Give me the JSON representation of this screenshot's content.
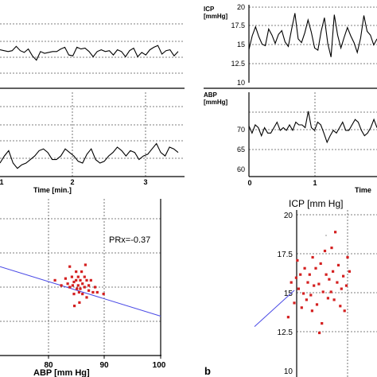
{
  "chart_data": [
    {
      "id": "a_top_trace",
      "type": "line",
      "y": [
        14.2,
        14.1,
        14.0,
        14.1,
        14.6,
        14.1,
        13.9,
        14.3,
        13.5,
        13.0,
        14.0,
        13.8,
        13.9,
        14.0,
        14.0,
        14.3,
        14.5,
        13.6,
        13.5,
        14.5,
        14.3,
        14.4,
        14.0,
        13.4,
        14.0,
        14.2,
        14.0,
        14.1,
        13.6,
        14.2,
        14.0,
        13.4,
        14.1,
        14.4,
        13.4,
        13.9,
        13.6,
        14.2,
        14.5,
        14.7,
        13.7,
        14.1,
        14.2,
        13.5,
        14.0
      ]
    },
    {
      "id": "a_bottom_trace",
      "type": "line",
      "x_ticks": [
        "1",
        "2",
        "3"
      ],
      "xlabel": "Time [min.]",
      "y": [
        80.0,
        82.0,
        83.5,
        80.0,
        78.5,
        79.5,
        80.0,
        81.0,
        82.0,
        83.5,
        84.0,
        83.0,
        81.0,
        81.0,
        82.0,
        84.0,
        83.0,
        82.0,
        80.5,
        80.0,
        82.5,
        84.0,
        81.0,
        80.0,
        80.5,
        82.0,
        83.0,
        84.5,
        83.5,
        82.0,
        83.5,
        83.0,
        81.0,
        82.0,
        82.5,
        84.0,
        85.5,
        83.0,
        82.0,
        84.5,
        84.0,
        83.0
      ]
    },
    {
      "id": "a_scatter",
      "type": "scatter",
      "annotation": "PRx=-0.37",
      "xlabel": "ABP [mm Hg]",
      "x_ticks": [
        "80",
        "90",
        "100"
      ],
      "xlim": [
        62,
        100
      ],
      "ylim": [
        10,
        20
      ],
      "points": [
        [
          75,
          14.4
        ],
        [
          76.5,
          14.1
        ],
        [
          77.5,
          14.5
        ],
        [
          78,
          14.2
        ],
        [
          78.5,
          15.2
        ],
        [
          78.5,
          14.0
        ],
        [
          79,
          14.6
        ],
        [
          79.2,
          14.1
        ],
        [
          79.5,
          13.6
        ],
        [
          79.5,
          14.3
        ],
        [
          80,
          14.9
        ],
        [
          80,
          14.4
        ],
        [
          80.2,
          13.9
        ],
        [
          80.5,
          14.6
        ],
        [
          80.5,
          14.1
        ],
        [
          80.7,
          13.7
        ],
        [
          81,
          14.4
        ],
        [
          81,
          13.9
        ],
        [
          81.3,
          14.9
        ],
        [
          81.5,
          14.2
        ],
        [
          81.5,
          13.6
        ],
        [
          82,
          14.6
        ],
        [
          82,
          14.0
        ],
        [
          82.2,
          15.3
        ],
        [
          82.5,
          13.4
        ],
        [
          82.5,
          14.4
        ],
        [
          83,
          14.1
        ],
        [
          83,
          13.8
        ],
        [
          83.5,
          14.4
        ],
        [
          84,
          13.7
        ],
        [
          84.5,
          14.0
        ],
        [
          85,
          13.7
        ],
        [
          86.5,
          13.6
        ],
        [
          79.6,
          12.9
        ],
        [
          80.8,
          13.1
        ]
      ],
      "trend": [
        [
          62,
          15.2
        ],
        [
          100,
          12.3
        ]
      ]
    },
    {
      "id": "b_icp_trace",
      "type": "line",
      "title": "ICP",
      "unit": "[mmHg]",
      "yticks": [
        "20",
        "17.5",
        "15",
        "12.5",
        "10"
      ],
      "ylim": [
        10,
        20
      ],
      "y": [
        14.4,
        16.2,
        17.4,
        16.1,
        15.1,
        14.9,
        17.1,
        16.3,
        15.2,
        16.4,
        16.9,
        15.4,
        14.8,
        17.1,
        19.2,
        15.8,
        15.3,
        16.6,
        18.3,
        16.7,
        14.6,
        14.3,
        16.8,
        18.6,
        15.2,
        13.4,
        19.0,
        16.3,
        14.6,
        16.0,
        17.3,
        16.2,
        15.3,
        14.0,
        15.9,
        18.9,
        16.8,
        16.3,
        15.0,
        15.8
      ]
    },
    {
      "id": "b_abp_trace",
      "type": "line",
      "title": "ABP",
      "unit": "[mmHg]",
      "yticks": [
        "70",
        "65",
        "60"
      ],
      "x_ticks": [
        "0",
        "1"
      ],
      "xlabel": "Time",
      "ylim": [
        58.5,
        74
      ],
      "y": [
        67.8,
        66.5,
        68.0,
        67.5,
        66.0,
        67.5,
        66.5,
        66.5,
        67.5,
        68.5,
        67.0,
        67.5,
        67.0,
        68.0,
        67.0,
        68.5,
        68.0,
        68.0,
        67.5,
        70.5,
        67.5,
        67.0,
        68.5,
        68.0,
        66.5,
        64.8,
        66.0,
        67.0,
        66.5,
        67.5,
        68.5,
        67.0,
        67.0,
        68.0,
        69.0,
        68.5,
        67.0,
        66.0,
        66.5,
        67.5,
        69.0,
        67.5
      ]
    },
    {
      "id": "b_scatter",
      "type": "scatter",
      "ylabel": "ICP [mm Hg]",
      "yticks": [
        "20",
        "17.5",
        "15",
        "12.5",
        "10"
      ],
      "ylim": [
        10,
        20
      ],
      "xlim": [
        -10,
        10
      ],
      "points": [
        [
          -4.5,
          13.5
        ],
        [
          -4.0,
          15.7
        ],
        [
          -3.5,
          14.4
        ],
        [
          -3.2,
          16.0
        ],
        [
          -2.8,
          15.3
        ],
        [
          -2.5,
          16.2
        ],
        [
          -2.3,
          14.1
        ],
        [
          -2.0,
          15.0
        ],
        [
          -1.8,
          16.6
        ],
        [
          -1.5,
          14.6
        ],
        [
          -1.3,
          15.7
        ],
        [
          -1.0,
          16.2
        ],
        [
          -0.8,
          14.9
        ],
        [
          -0.5,
          17.3
        ],
        [
          -0.3,
          15.5
        ],
        [
          0.0,
          16.6
        ],
        [
          0.2,
          14.3
        ],
        [
          0.5,
          15.6
        ],
        [
          0.8,
          16.9
        ],
        [
          1.0,
          13.1
        ],
        [
          1.2,
          15.1
        ],
        [
          1.5,
          17.7
        ],
        [
          1.7,
          16.2
        ],
        [
          2.0,
          14.7
        ],
        [
          2.2,
          15.9
        ],
        [
          2.5,
          15.1
        ],
        [
          2.8,
          16.4
        ],
        [
          3.0,
          14.6
        ],
        [
          3.2,
          18.9
        ],
        [
          3.5,
          15.7
        ],
        [
          3.7,
          16.8
        ],
        [
          4.0,
          14.2
        ],
        [
          4.2,
          15.3
        ],
        [
          4.5,
          16.1
        ],
        [
          4.7,
          13.9
        ],
        [
          5.0,
          15.5
        ],
        [
          5.2,
          17.3
        ],
        [
          5.5,
          16.4
        ],
        [
          -0.6,
          13.9
        ],
        [
          0.6,
          12.5
        ],
        [
          2.6,
          17.9
        ],
        [
          -3.0,
          17.1
        ]
      ],
      "trend": [
        [
          -10,
          12.9
        ],
        [
          -3.5,
          15.2
        ]
      ]
    }
  ],
  "labels": {
    "panel_b": "b"
  },
  "colors": {
    "trace": "#000000",
    "scatter_point": "#d42020",
    "trend_line": "#4a4ae6",
    "grid": "#555555"
  }
}
